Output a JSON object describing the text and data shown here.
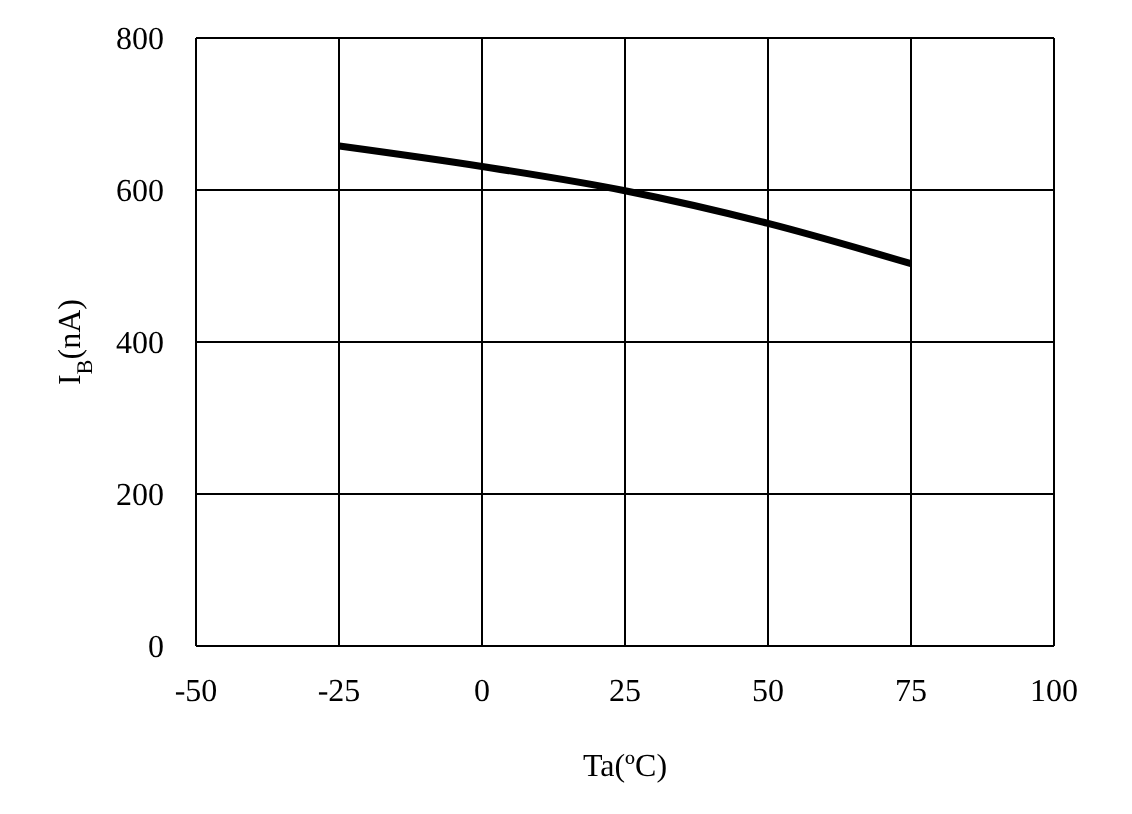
{
  "chart_data": {
    "type": "line",
    "x": [
      -25,
      0,
      25,
      50,
      75
    ],
    "series": [
      {
        "color": "#000000",
        "values": [
          658,
          631,
          599,
          556,
          503
        ]
      }
    ],
    "xlabel": "Ta(ºC)",
    "ylabel": "I$_{B}$(nA)",
    "xlim": [
      -50,
      100
    ],
    "xticks": [
      -50,
      -25,
      0,
      25,
      50,
      75,
      100
    ],
    "ylim": [
      0,
      800
    ],
    "yticks": [
      0,
      200,
      400,
      600,
      800
    ],
    "grid": true,
    "marker": "none",
    "line_style": "solid",
    "legend": false
  }
}
